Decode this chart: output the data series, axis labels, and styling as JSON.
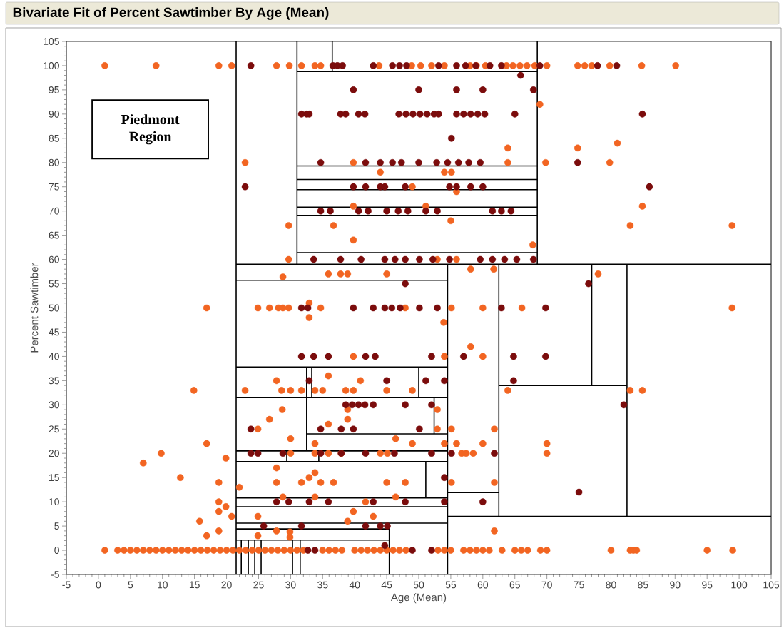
{
  "chart_data": {
    "type": "scatter",
    "title": "Bivariate Fit of Percent Sawtimber By Age (Mean)",
    "xlabel": "Age (Mean)",
    "ylabel": "Percent Sawtimber",
    "marker": "circle",
    "annotations": [
      "Piedmont Region"
    ],
    "xlim": [
      -5,
      105
    ],
    "ylim": [
      -5,
      105
    ],
    "xticks": [
      -5,
      0,
      5,
      10,
      15,
      20,
      25,
      30,
      35,
      40,
      45,
      50,
      55,
      60,
      65,
      70,
      75,
      80,
      85,
      90,
      95,
      100,
      105
    ],
    "yticks": [
      -5,
      0,
      5,
      10,
      15,
      20,
      25,
      30,
      35,
      40,
      45,
      50,
      55,
      60,
      65,
      70,
      75,
      80,
      85,
      90,
      95,
      100,
      105
    ],
    "series": [
      {
        "color": "#f26522",
        "x": [
          1,
          9,
          18.8,
          20.8,
          27.8,
          29.8,
          31.7,
          33.8,
          34.7,
          43.8,
          48.9,
          50.3,
          52,
          54,
          58,
          59,
          60.4,
          63.7,
          64.7,
          65.8,
          66.9,
          68.1,
          70,
          74.8,
          75.9,
          77,
          79.8,
          84.8,
          90.1,
          68.9,
          63.9,
          74.8,
          81,
          22.9,
          39.8,
          63.9,
          69.8,
          79.8,
          44,
          54,
          55.1,
          49,
          55.9,
          39.8,
          51.1,
          84.9,
          29.7,
          36.7,
          83,
          98.9,
          55,
          39.8,
          67.8,
          29.7,
          52.9,
          55.9,
          35.9,
          37.8,
          38.9,
          45,
          78,
          28.8,
          58.1,
          61.7,
          32.9,
          32.9,
          53.9,
          16.9,
          24.9,
          26.7,
          28.1,
          28.8,
          29.7,
          34.7,
          47.9,
          55.1,
          60,
          66.1,
          98.9,
          58.1,
          39.8,
          54,
          60,
          35.9,
          27.8,
          40.9,
          14.9,
          22.9,
          28.6,
          30,
          31.7,
          33.8,
          35,
          38.6,
          39.8,
          45,
          49,
          63.9,
          83,
          84.9,
          28.7,
          38.9,
          52.9,
          26.7,
          38.9,
          35.9,
          24.9,
          52.9,
          55.1,
          61.8,
          30,
          46.4,
          16.9,
          33.8,
          49,
          54,
          55.9,
          60,
          70,
          9.8,
          30,
          33.8,
          35.9,
          37.9,
          44,
          45.1,
          56.7,
          57.4,
          58.5,
          70,
          19.9,
          7,
          27.8,
          33.8,
          12.8,
          32.9,
          18.8,
          27.8,
          31.7,
          34.7,
          36.7,
          45,
          47.9,
          55.1,
          61.8,
          22,
          28.8,
          33.8,
          46.4,
          18.8,
          41.7,
          19.9,
          18.8,
          39.8,
          20.8,
          24.9,
          42.9,
          15.8,
          38.9,
          18.8,
          27.8,
          61.8,
          29.9,
          16.9,
          24.9,
          29.9,
          1,
          3,
          4,
          5,
          6,
          7,
          8,
          9,
          10,
          11,
          12,
          13,
          14,
          15,
          16,
          17,
          18,
          19,
          20,
          21,
          22,
          23,
          24,
          25,
          26,
          27,
          28,
          29,
          30,
          31,
          32,
          35,
          36,
          37,
          38,
          40,
          41,
          42,
          43,
          44,
          45,
          46,
          47,
          48,
          53,
          54,
          55,
          57,
          58,
          59,
          60,
          61,
          63,
          65,
          66,
          67,
          69,
          70,
          80,
          83,
          83.5,
          84,
          95,
          99
        ],
        "values": [
          100,
          100,
          100,
          100,
          100,
          100,
          100,
          100,
          100,
          100,
          100,
          100,
          100,
          100,
          100,
          100,
          100,
          100,
          100,
          100,
          100,
          100,
          100,
          100,
          100,
          100,
          100,
          100,
          100,
          92,
          83,
          83,
          84,
          80,
          80,
          80,
          80,
          80,
          78,
          78,
          78,
          75,
          74,
          71,
          71,
          71,
          67,
          67,
          67,
          67,
          68,
          64,
          63,
          60,
          60,
          60,
          57,
          57,
          57,
          57,
          57,
          56.4,
          58,
          58,
          51,
          48,
          47,
          50,
          50,
          50,
          50,
          50,
          50,
          50,
          50,
          50,
          50,
          50,
          50,
          42,
          40,
          40,
          40,
          36,
          35,
          35,
          33,
          33,
          33,
          33,
          33,
          33,
          33,
          33,
          33,
          33,
          33,
          33,
          33,
          33,
          29,
          29,
          29,
          27,
          27,
          26,
          25,
          25,
          25,
          25,
          23,
          23,
          22,
          22,
          22,
          22,
          22,
          22,
          22,
          20,
          20,
          20,
          20,
          20,
          20,
          20,
          20,
          20,
          20,
          20,
          19,
          18,
          17,
          16,
          15,
          15,
          14,
          14,
          14,
          14,
          14,
          14,
          14,
          14,
          14,
          13,
          11,
          11,
          11,
          10,
          10,
          9,
          8,
          8,
          7,
          7,
          7,
          6,
          6,
          4,
          4,
          4,
          3.8,
          3,
          3,
          2.7,
          0,
          0,
          0,
          0,
          0,
          0,
          0,
          0,
          0,
          0,
          0,
          0,
          0,
          0,
          0,
          0,
          0,
          0,
          0,
          0,
          0,
          0,
          0,
          0,
          0,
          0,
          0,
          0,
          0,
          0,
          0,
          0,
          0,
          0,
          0,
          0,
          0,
          0,
          0,
          0,
          0,
          0,
          0,
          0,
          0,
          0,
          0,
          0,
          0,
          0,
          0,
          0,
          0,
          0,
          0,
          0,
          0,
          0,
          0,
          0,
          0,
          0,
          0,
          0
        ]
      },
      {
        "color": "#7b0c0c",
        "x": [
          23.8,
          36.6,
          37.3,
          38.1,
          42.9,
          45.9,
          47,
          48.1,
          53.1,
          55.9,
          57.3,
          58.9,
          61.1,
          62.9,
          68.9,
          77.9,
          80.9,
          65.9,
          39.8,
          50,
          55.9,
          60,
          67.9,
          31.7,
          32.5,
          32.9,
          37.8,
          38.6,
          40.6,
          41.6,
          46.9,
          48,
          49.1,
          50.2,
          51.3,
          52.4,
          53.1,
          55.9,
          57,
          58.1,
          59.2,
          60.3,
          65,
          84.9,
          55.1,
          34.7,
          41.7,
          44,
          45.9,
          47.3,
          50,
          52.8,
          54.5,
          56.2,
          57.8,
          59.6,
          74.8,
          22.9,
          39.8,
          41.7,
          44,
          44.7,
          47.9,
          54.8,
          55.9,
          58.1,
          60,
          86,
          34.7,
          36.2,
          40.6,
          42.1,
          45,
          46.8,
          48.3,
          51.1,
          52.9,
          61.5,
          62.9,
          64.4,
          33.6,
          37.8,
          41,
          44.7,
          46.3,
          47.9,
          50.1,
          52.2,
          54.8,
          59.6,
          61.5,
          63.4,
          65.3,
          67.9,
          47.9,
          76.5,
          31.7,
          32.7,
          39.8,
          42.9,
          44.7,
          45.8,
          47.1,
          50.1,
          52.9,
          62.9,
          69.8,
          31.7,
          33.6,
          35.9,
          41.7,
          43.2,
          52,
          57,
          64.8,
          69.8,
          32.9,
          45,
          51.1,
          54,
          64.8,
          38.6,
          39.6,
          40.6,
          41.6,
          42.9,
          47.9,
          52,
          82,
          23.8,
          34.7,
          37.9,
          39.8,
          50.1,
          23.8,
          24.9,
          28.8,
          34.7,
          37.9,
          41.7,
          46.2,
          52,
          55.1,
          61.8,
          54,
          75,
          27.8,
          29.7,
          32.9,
          35.9,
          42.9,
          47.9,
          54,
          60,
          25.8,
          31.7,
          41.7,
          44,
          45.1,
          44.7,
          32.7,
          33.8,
          49,
          52
        ],
        "values": [
          100,
          100,
          100,
          100,
          100,
          100,
          100,
          100,
          100,
          100,
          100,
          100,
          100,
          100,
          100,
          100,
          100,
          98,
          95,
          95,
          95,
          95,
          95,
          90,
          90,
          90,
          90,
          90,
          90,
          90,
          90,
          90,
          90,
          90,
          90,
          90,
          90,
          90,
          90,
          90,
          90,
          90,
          90,
          90,
          85,
          80,
          80,
          80,
          80,
          80,
          80,
          80,
          80,
          80,
          80,
          80,
          80,
          75,
          75,
          75,
          75,
          75,
          75,
          75,
          75,
          75,
          75,
          75,
          70,
          70,
          70,
          70,
          70,
          70,
          70,
          70,
          70,
          70,
          70,
          70,
          60,
          60,
          60,
          60,
          60,
          60,
          60,
          60,
          60,
          60,
          60,
          60,
          60,
          60,
          55,
          55,
          50,
          50,
          50,
          50,
          50,
          50,
          50,
          50,
          50,
          50,
          50,
          40,
          40,
          40,
          40,
          40,
          40,
          40,
          40,
          40,
          35,
          35,
          35,
          35,
          35,
          30,
          30,
          30,
          30,
          30,
          30,
          30,
          30,
          25,
          25,
          25,
          25,
          25,
          20,
          20,
          20,
          20,
          20,
          20,
          20,
          20,
          20,
          20,
          15,
          12,
          10,
          10,
          10,
          10,
          10,
          10,
          10,
          10,
          5,
          5,
          5,
          5,
          5,
          1,
          0,
          0,
          0,
          0
        ]
      },
      {
        "type": "line",
        "marker": "none",
        "color": "#000000",
        "x": [
          21.5,
          21.5
        ],
        "values": [
          -5,
          105
        ]
      },
      {
        "type": "line",
        "marker": "none",
        "color": "#000000",
        "x": [
          31,
          31
        ],
        "values": [
          59,
          105
        ]
      },
      {
        "type": "line",
        "marker": "none",
        "color": "#000000",
        "x": [
          36.5,
          36.5
        ],
        "values": [
          98.8,
          105
        ]
      },
      {
        "type": "line",
        "marker": "none",
        "color": "#000000",
        "x": [
          68.5,
          68.5
        ],
        "values": [
          59,
          105
        ]
      },
      {
        "type": "line",
        "marker": "none",
        "color": "#000000",
        "x": [
          31,
          68.5
        ],
        "values": [
          98.8,
          98.8
        ]
      },
      {
        "type": "line",
        "marker": "none",
        "color": "#000000",
        "x": [
          31,
          68.5
        ],
        "values": [
          79.3,
          79.3
        ]
      },
      {
        "type": "line",
        "marker": "none",
        "color": "#000000",
        "x": [
          31,
          68.5
        ],
        "values": [
          76.5,
          76.5
        ]
      },
      {
        "type": "line",
        "marker": "none",
        "color": "#000000",
        "x": [
          31,
          68.5
        ],
        "values": [
          74.4,
          74.4
        ]
      },
      {
        "type": "line",
        "marker": "none",
        "color": "#000000",
        "x": [
          31,
          68.5
        ],
        "values": [
          70.8,
          70.8
        ]
      },
      {
        "type": "line",
        "marker": "none",
        "color": "#000000",
        "x": [
          31,
          68.5
        ],
        "values": [
          69.1,
          69.1
        ]
      },
      {
        "type": "line",
        "marker": "none",
        "color": "#000000",
        "x": [
          31,
          68.5
        ],
        "values": [
          61.4,
          61.4
        ]
      },
      {
        "type": "line",
        "marker": "none",
        "color": "#000000",
        "x": [
          21.5,
          105
        ],
        "values": [
          59,
          59
        ]
      },
      {
        "type": "line",
        "marker": "none",
        "color": "#000000",
        "x": [
          54.5,
          54.5
        ],
        "values": [
          -5,
          59
        ]
      },
      {
        "type": "line",
        "marker": "none",
        "color": "#000000",
        "x": [
          21.5,
          54.5
        ],
        "values": [
          55.7,
          55.7
        ]
      },
      {
        "type": "line",
        "marker": "none",
        "color": "#000000",
        "x": [
          21.5,
          54.5
        ],
        "values": [
          37.8,
          37.8
        ]
      },
      {
        "type": "line",
        "marker": "none",
        "color": "#000000",
        "x": [
          21.5,
          54.5
        ],
        "values": [
          31.5,
          31.5
        ]
      },
      {
        "type": "line",
        "marker": "none",
        "color": "#000000",
        "x": [
          33.3,
          33.3
        ],
        "values": [
          31.5,
          37.8
        ]
      },
      {
        "type": "line",
        "marker": "none",
        "color": "#000000",
        "x": [
          50,
          50
        ],
        "values": [
          31.5,
          37.8
        ]
      },
      {
        "type": "line",
        "marker": "none",
        "color": "#000000",
        "x": [
          32.5,
          32.5
        ],
        "values": [
          20.5,
          37.8
        ]
      },
      {
        "type": "line",
        "marker": "none",
        "color": "#000000",
        "x": [
          32.5,
          54.5
        ],
        "values": [
          24,
          24
        ]
      },
      {
        "type": "line",
        "marker": "none",
        "color": "#000000",
        "x": [
          52.4,
          52.4
        ],
        "values": [
          24,
          31.5
        ]
      },
      {
        "type": "line",
        "marker": "none",
        "color": "#000000",
        "x": [
          21.5,
          54.5
        ],
        "values": [
          20.5,
          20.5
        ]
      },
      {
        "type": "line",
        "marker": "none",
        "color": "#000000",
        "x": [
          21.5,
          54.5
        ],
        "values": [
          18.3,
          18.3
        ]
      },
      {
        "type": "line",
        "marker": "none",
        "color": "#000000",
        "x": [
          29.4,
          29.4
        ],
        "values": [
          18.3,
          20.5
        ]
      },
      {
        "type": "line",
        "marker": "none",
        "color": "#000000",
        "x": [
          34.4,
          34.4
        ],
        "values": [
          18.3,
          20.5
        ]
      },
      {
        "type": "line",
        "marker": "none",
        "color": "#000000",
        "x": [
          51.1,
          51.1
        ],
        "values": [
          10.8,
          18.3
        ]
      },
      {
        "type": "line",
        "marker": "none",
        "color": "#000000",
        "x": [
          21.5,
          54.5
        ],
        "values": [
          10.8,
          10.8
        ]
      },
      {
        "type": "line",
        "marker": "none",
        "color": "#000000",
        "x": [
          21.5,
          54.5
        ],
        "values": [
          9,
          9
        ]
      },
      {
        "type": "line",
        "marker": "none",
        "color": "#000000",
        "x": [
          21.5,
          54.5
        ],
        "values": [
          5.6,
          5.6
        ]
      },
      {
        "type": "line",
        "marker": "none",
        "color": "#000000",
        "x": [
          21.5,
          45.4
        ],
        "values": [
          4.4,
          4.4
        ]
      },
      {
        "type": "line",
        "marker": "none",
        "color": "#000000",
        "x": [
          21.5,
          45.4
        ],
        "values": [
          2.1,
          2.1
        ]
      },
      {
        "type": "line",
        "marker": "none",
        "color": "#000000",
        "x": [
          45.4,
          45.4
        ],
        "values": [
          -5,
          5.6
        ]
      },
      {
        "type": "line",
        "marker": "none",
        "color": "#000000",
        "x": [
          30.3,
          30.3
        ],
        "values": [
          -5,
          2.1
        ]
      },
      {
        "type": "line",
        "marker": "none",
        "color": "#000000",
        "x": [
          31.5,
          31.5
        ],
        "values": [
          -5,
          2.1
        ]
      },
      {
        "type": "line",
        "marker": "none",
        "color": "#000000",
        "x": [
          22.3,
          22.3
        ],
        "values": [
          -5,
          2.1
        ]
      },
      {
        "type": "line",
        "marker": "none",
        "color": "#000000",
        "x": [
          23.4,
          23.4
        ],
        "values": [
          -5,
          2.1
        ]
      },
      {
        "type": "line",
        "marker": "none",
        "color": "#000000",
        "x": [
          24.4,
          24.4
        ],
        "values": [
          -5,
          2.1
        ]
      },
      {
        "type": "line",
        "marker": "none",
        "color": "#000000",
        "x": [
          25.4,
          25.4
        ],
        "values": [
          -5,
          2.1
        ]
      },
      {
        "type": "line",
        "marker": "none",
        "color": "#000000",
        "x": [
          62.5,
          62.5
        ],
        "values": [
          7,
          59
        ]
      },
      {
        "type": "line",
        "marker": "none",
        "color": "#000000",
        "x": [
          82.5,
          82.5
        ],
        "values": [
          7,
          59
        ]
      },
      {
        "type": "line",
        "marker": "none",
        "color": "#000000",
        "x": [
          77,
          77
        ],
        "values": [
          34,
          59
        ]
      },
      {
        "type": "line",
        "marker": "none",
        "color": "#000000",
        "x": [
          62.5,
          82.5
        ],
        "values": [
          34,
          34
        ]
      },
      {
        "type": "line",
        "marker": "none",
        "color": "#000000",
        "x": [
          54.5,
          105
        ],
        "values": [
          7,
          7
        ]
      },
      {
        "type": "line",
        "marker": "none",
        "color": "#000000",
        "x": [
          54.5,
          62.5
        ],
        "values": [
          11.9,
          11.9
        ]
      }
    ]
  }
}
